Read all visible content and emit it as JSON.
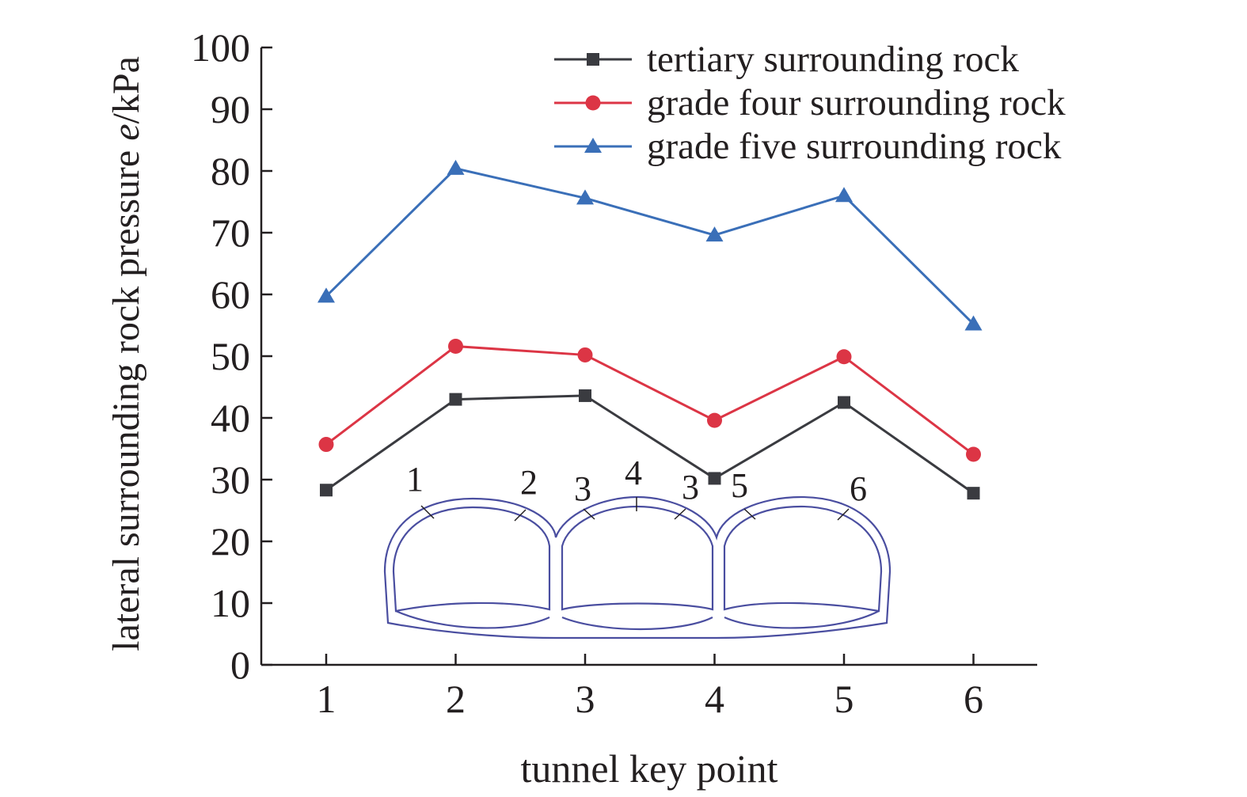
{
  "chart_data": {
    "type": "line",
    "title": "",
    "xlabel": "tunnel key point",
    "ylabel_prefix": "lateral surrounding rock pressure ",
    "ylabel_var": "e",
    "ylabel_unit": "/kPa",
    "categories": [
      "1",
      "2",
      "3",
      "4",
      "5",
      "6"
    ],
    "ylim": [
      0,
      100
    ],
    "yticks": [
      "0",
      "10",
      "20",
      "30",
      "40",
      "50",
      "60",
      "70",
      "80",
      "90",
      "100"
    ],
    "grid": false,
    "legend_position": "top-right",
    "series": [
      {
        "name": "tertiary surrounding rock",
        "values": [
          28.3,
          43.0,
          43.6,
          30.2,
          42.5,
          27.8
        ],
        "color": "#3a3b40",
        "marker": "square"
      },
      {
        "name": "grade four surrounding rock",
        "values": [
          35.7,
          51.6,
          50.2,
          39.6,
          49.9,
          34.1
        ],
        "color": "#dc3545",
        "marker": "circle"
      },
      {
        "name": "grade five surrounding rock",
        "values": [
          59.7,
          80.4,
          75.6,
          69.6,
          76.0,
          55.2
        ],
        "color": "#3a6fb8",
        "marker": "triangle"
      }
    ],
    "inset": {
      "type": "tunnel cross-section diagram",
      "color": "#4a4ea0",
      "point_labels": [
        "1",
        "2",
        "3",
        "4",
        "3",
        "5",
        "6"
      ]
    }
  }
}
